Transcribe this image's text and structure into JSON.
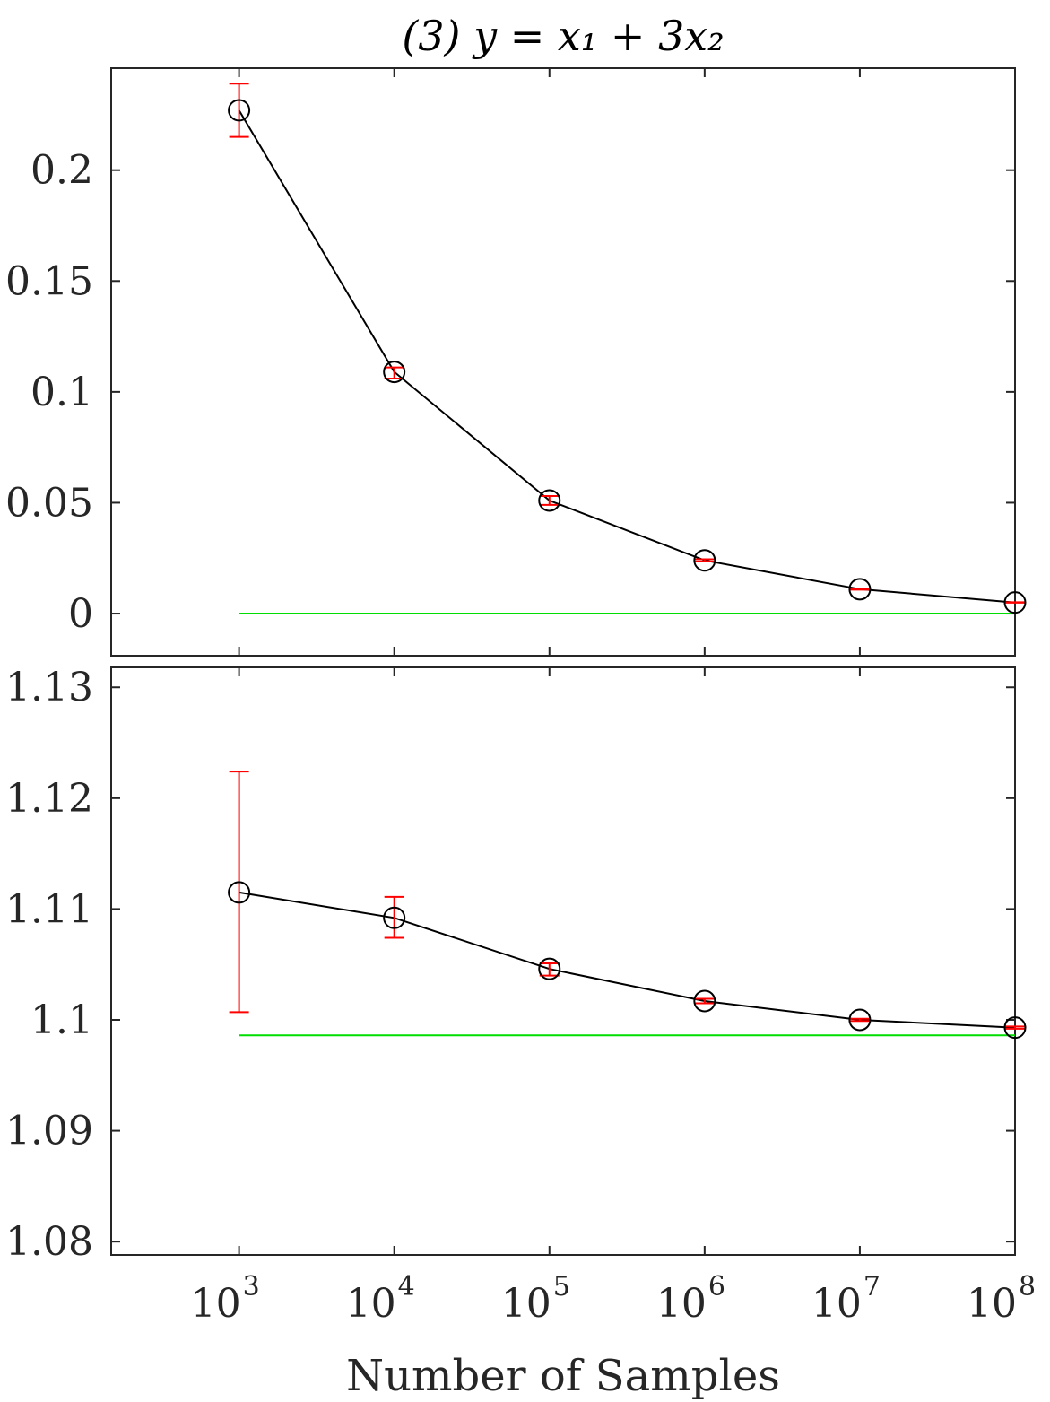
{
  "chart_data": {
    "title": "(3) y = x₁ + 3x₂",
    "type": "line",
    "x_scale": "log",
    "xlabel": "Number of Samples",
    "x_ticks": [
      {
        "value": 1000,
        "base": "10",
        "exp": "3"
      },
      {
        "value": 10000,
        "base": "10",
        "exp": "4"
      },
      {
        "value": 100000,
        "base": "10",
        "exp": "5"
      },
      {
        "value": 1000000,
        "base": "10",
        "exp": "6"
      },
      {
        "value": 10000000,
        "base": "10",
        "exp": "7"
      },
      {
        "value": 100000000,
        "base": "10",
        "exp": "8"
      }
    ],
    "xlim": [
      150,
      100000000
    ],
    "panels": [
      {
        "ylabel": "",
        "ylim": [
          -0.019,
          0.246
        ],
        "y_ticks": [
          {
            "value": 0,
            "label": "0"
          },
          {
            "value": 0.05,
            "label": "0.05"
          },
          {
            "value": 0.1,
            "label": "0.1"
          },
          {
            "value": 0.15,
            "label": "0.15"
          },
          {
            "value": 0.2,
            "label": "0.2"
          }
        ],
        "series": {
          "x": [
            1000,
            10000,
            100000,
            1000000,
            10000000,
            100000000
          ],
          "y": [
            0.227,
            0.109,
            0.051,
            0.024,
            0.011,
            0.005
          ],
          "err_low": [
            0.215,
            0.106,
            0.049,
            0.0235,
            0.0108,
            0.0049
          ],
          "err_high": [
            0.239,
            0.111,
            0.053,
            0.0245,
            0.0112,
            0.0051
          ]
        },
        "reference": {
          "y": 0,
          "x_from": 1000,
          "x_to": 100000000
        }
      },
      {
        "ylabel": "",
        "ylim": [
          1.0788,
          1.1318
        ],
        "y_ticks": [
          {
            "value": 1.08,
            "label": "1.08"
          },
          {
            "value": 1.09,
            "label": "1.09"
          },
          {
            "value": 1.1,
            "label": "1.1"
          },
          {
            "value": 1.11,
            "label": "1.11"
          },
          {
            "value": 1.12,
            "label": "1.12"
          },
          {
            "value": 1.13,
            "label": "1.13"
          }
        ],
        "series": {
          "x": [
            1000,
            10000,
            100000,
            1000000,
            10000000,
            100000000
          ],
          "y": [
            1.1115,
            1.1092,
            1.1046,
            1.1017,
            1.1,
            1.0993
          ],
          "err_low": [
            1.1007,
            1.1074,
            1.104,
            1.1015,
            1.0999,
            1.0992
          ],
          "err_high": [
            1.1224,
            1.1111,
            1.1051,
            1.1019,
            1.1001,
            1.0994
          ]
        },
        "reference": {
          "y": 1.0986,
          "x_from": 1000,
          "x_to": 100000000
        }
      }
    ],
    "colors": {
      "axes": "#262626",
      "line": "#000000",
      "marker": "#000000",
      "errorbar": "#ff0000",
      "reference": "#00dd00"
    },
    "marker": "open-circle",
    "grid": false,
    "legend": "none"
  }
}
